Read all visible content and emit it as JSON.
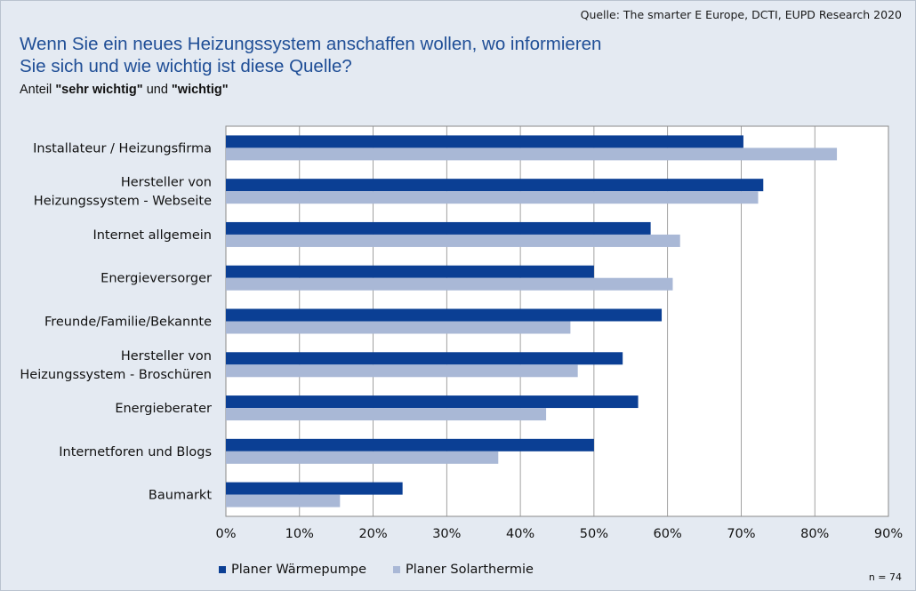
{
  "source": "Quelle: The smarter E Europe, DCTI, EUPD Research 2020",
  "title_line1": "Wenn Sie ein neues Heizungssystem anschaffen wollen, wo informieren",
  "title_line2": "Sie sich und wie wichtig ist diese Quelle?",
  "subtitle": {
    "prefix": "Anteil ",
    "term1": "\"sehr wichtig\"",
    "mid": " und ",
    "term2": "\"wichtig\""
  },
  "note": "n = 74",
  "colors": {
    "series1": "#0b3f94",
    "series2": "#a9b8d6"
  },
  "chart_data": {
    "type": "bar",
    "orientation": "horizontal",
    "categories": [
      [
        "Installateur / Heizungsfirma"
      ],
      [
        "Hersteller von",
        "Heizungssystem - Webseite"
      ],
      [
        "Internet allgemein"
      ],
      [
        "Energieversorger"
      ],
      [
        "Freunde/Familie/Bekannte"
      ],
      [
        "Hersteller von",
        "Heizungssystem - Broschüren"
      ],
      [
        "Energieberater"
      ],
      [
        "Internetforen und Blogs"
      ],
      [
        "Baumarkt"
      ]
    ],
    "series": [
      {
        "name": "Planer Wärmepumpe",
        "values": [
          70.3,
          73.0,
          57.7,
          50.0,
          59.2,
          53.9,
          56.0,
          50.0,
          24.0
        ]
      },
      {
        "name": "Planer Solarthermie",
        "values": [
          83.0,
          72.3,
          61.7,
          60.7,
          46.8,
          47.8,
          43.5,
          37.0,
          15.5
        ]
      }
    ],
    "xlim": [
      0,
      90
    ],
    "xticks": [
      "0%",
      "10%",
      "20%",
      "30%",
      "40%",
      "50%",
      "60%",
      "70%",
      "80%",
      "90%"
    ],
    "grid": true,
    "legend_position": "bottom"
  }
}
